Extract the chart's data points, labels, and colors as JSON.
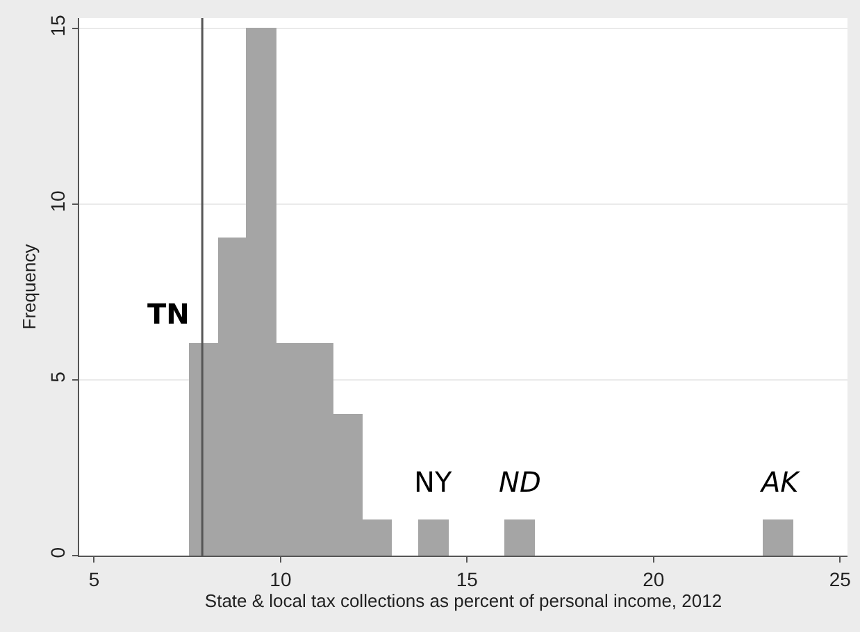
{
  "chart_data": {
    "type": "histogram",
    "xlabel": "State & local tax collections as percent of personal income, 2012",
    "ylabel": "Frequency",
    "bins": [
      7.58,
      8.35,
      9.12,
      9.89,
      10.66,
      11.43,
      12.2,
      12.97,
      13.74,
      14.51,
      15.28,
      16.05,
      16.82,
      17.59,
      18.36,
      19.13,
      19.9,
      20.67,
      21.44,
      22.21,
      22.98,
      23.75
    ],
    "values": [
      6,
      9,
      15,
      6,
      6,
      4,
      1,
      0,
      1,
      0,
      0,
      1,
      0,
      0,
      0,
      0,
      0,
      0,
      0,
      0,
      1
    ],
    "color": "#a5a5a5",
    "xlim": [
      4.6,
      25.2
    ],
    "xticks": [
      5,
      10,
      15,
      20,
      25
    ],
    "ylim": [
      0,
      15.3
    ],
    "yticks": [
      0,
      5,
      10,
      15
    ],
    "grid": "y",
    "ref_lines": [
      {
        "axis": "x",
        "value": 7.9,
        "color": "#555555"
      }
    ],
    "annotations": [
      {
        "text": "TN",
        "x": 7.9,
        "y": 6
      },
      {
        "text": "NY",
        "x": 14.1,
        "y": 1
      },
      {
        "text": "ND",
        "x": 16.4,
        "y": 1
      },
      {
        "text": "AK",
        "x": 23.4,
        "y": 1
      }
    ]
  }
}
